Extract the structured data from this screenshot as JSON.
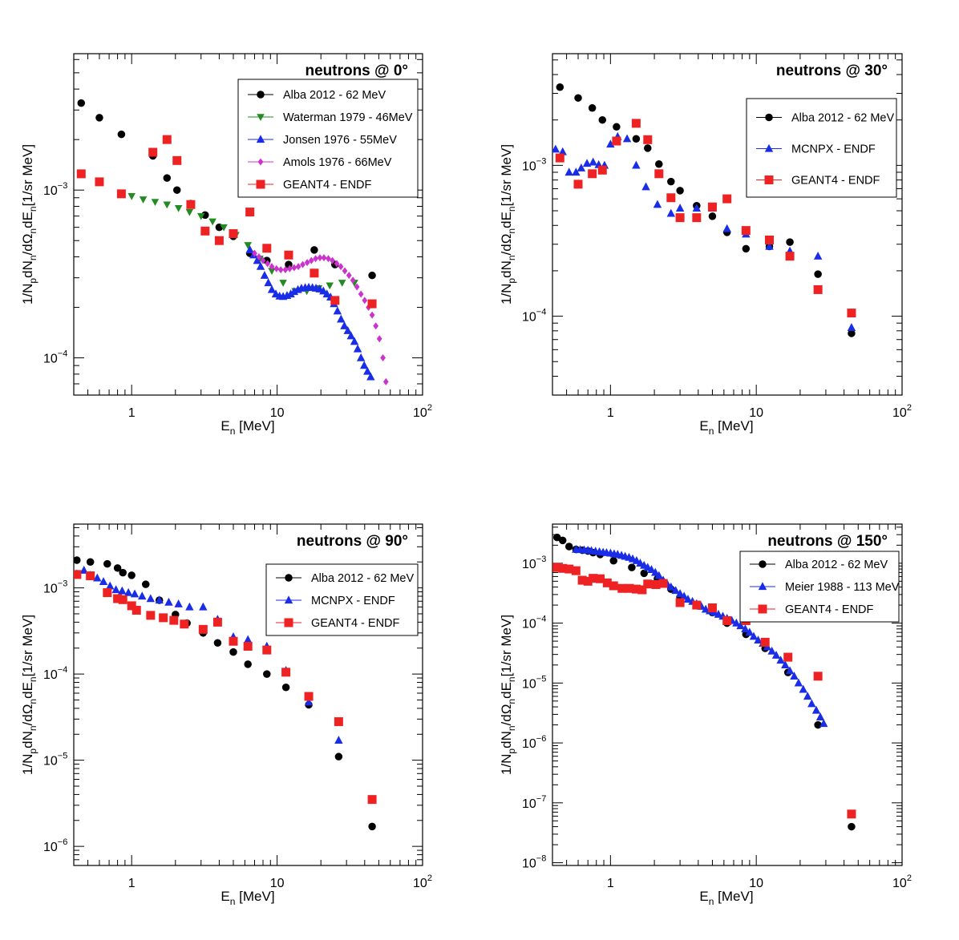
{
  "colors": {
    "black": "#000000",
    "green": "#228b22",
    "blue": "#1a2de6",
    "magenta": "#cc33cc",
    "red": "#ee2222"
  },
  "chart_data": [
    {
      "type": "scatter",
      "title": "neutrons @ 0°",
      "xlabel": "E_n [MeV]",
      "ylabel": "1/N_p dN_n/dΩ_n dE_n [1/sr MeV]",
      "xscale": "log",
      "yscale": "log",
      "xlim": [
        0.4,
        100
      ],
      "ylim": [
        6e-05,
        0.0065
      ],
      "xticklabels": [
        "1",
        "10",
        "10^2"
      ],
      "yticks": [
        {
          "v": 0.001,
          "m": "10",
          "e": "−3"
        },
        {
          "v": 0.0001,
          "m": "10",
          "e": "−4"
        }
      ],
      "legend": {
        "placement": "top-right"
      },
      "series": [
        {
          "name": "Alba 2012 - 62 MeV",
          "marker": "circle",
          "color": "#000000",
          "x": [
            0.45,
            0.6,
            0.85,
            1.4,
            1.75,
            2.05,
            2.55,
            3.2,
            4.0,
            5.0,
            6.5,
            8.5,
            12,
            18,
            25,
            45
          ],
          "y": [
            0.0033,
            0.0027,
            0.00215,
            0.0016,
            0.00118,
            0.001,
            0.00083,
            0.00071,
            0.0006,
            0.00053,
            0.00042,
            0.00038,
            0.00036,
            0.00044,
            0.00036,
            0.00031
          ]
        },
        {
          "name": "Waterman 1979 - 46MeV",
          "marker": "triangle-down",
          "color": "#228b22",
          "x": [
            1.0,
            1.2,
            1.45,
            1.75,
            2.1,
            2.5,
            3.0,
            3.6,
            4.3,
            5.2,
            6.3,
            7.6,
            9.2,
            11,
            13.3,
            16,
            19.3,
            23,
            28,
            34
          ],
          "y": [
            0.00092,
            0.00088,
            0.00085,
            0.00082,
            0.00078,
            0.00074,
            0.0007,
            0.00065,
            0.0006,
            0.00054,
            0.00047,
            0.00039,
            0.00033,
            0.00028,
            0.00025,
            0.00025,
            0.00026,
            0.00027,
            0.00028,
            0.00028
          ]
        },
        {
          "name": "Jonsen 1976 - 55MeV",
          "marker": "triangle-up",
          "color": "#1a2de6",
          "x": [
            6.5,
            6.9,
            7.3,
            7.7,
            8.2,
            8.7,
            9.2,
            9.8,
            10.4,
            11.0,
            11.7,
            12.4,
            13.1,
            13.9,
            14.7,
            15.6,
            16.5,
            17.5,
            18.5,
            19.6,
            20.8,
            22,
            23.3,
            24.6,
            26,
            27.5,
            29,
            30.6,
            32.2,
            34,
            35.8,
            37.7,
            39.7,
            41.8,
            44
          ],
          "y": [
            0.00044,
            0.00041,
            0.00038,
            0.00035,
            0.00031,
            0.00028,
            0.000255,
            0.00024,
            0.000233,
            0.000232,
            0.000235,
            0.00024,
            0.000248,
            0.000255,
            0.00026,
            0.000262,
            0.000263,
            0.000262,
            0.00026,
            0.000257,
            0.00025,
            0.00024,
            0.00023,
            0.00021,
            0.00019,
            0.00017,
            0.000155,
            0.000145,
            0.000135,
            0.000125,
            0.000113,
            0.0001,
            9e-05,
            8.3e-05,
            7.7e-05
          ]
        },
        {
          "name": "Amols 1976 - 66MeV",
          "marker": "diamond",
          "color": "#cc33cc",
          "x": [
            7,
            7.5,
            8,
            8.6,
            9.2,
            9.9,
            10.6,
            11.4,
            12.2,
            13.1,
            14.0,
            15.0,
            16.1,
            17.2,
            18.4,
            19.7,
            21,
            22.5,
            24,
            25.7,
            27.4,
            29.2,
            31.2,
            33.2,
            35.4,
            37.7,
            40,
            42.5,
            45,
            47.7,
            50.5,
            53.4,
            56
          ],
          "y": [
            0.00042,
            0.0004,
            0.00038,
            0.000365,
            0.00035,
            0.00034,
            0.000335,
            0.000335,
            0.00034,
            0.000345,
            0.00035,
            0.00036,
            0.00037,
            0.00038,
            0.00039,
            0.000395,
            0.000395,
            0.00039,
            0.00038,
            0.000365,
            0.00035,
            0.00033,
            0.00031,
            0.00029,
            0.000265,
            0.00024,
            0.00022,
            0.0002,
            0.00018,
            0.000155,
            0.00013,
            0.0001,
            7.2e-05
          ]
        },
        {
          "name": "GEANT4 - ENDF",
          "marker": "square",
          "color": "#ee2222",
          "x": [
            0.45,
            0.6,
            0.85,
            1.4,
            1.75,
            2.05,
            2.55,
            3.2,
            4.0,
            5.0,
            6.5,
            8.5,
            12,
            18,
            25,
            45
          ],
          "y": [
            0.00125,
            0.00112,
            0.00095,
            0.00168,
            0.002,
            0.0015,
            0.00082,
            0.00057,
            0.0005,
            0.00055,
            0.00074,
            0.00045,
            0.00041,
            0.00032,
            0.00022,
            0.00021
          ]
        }
      ]
    },
    {
      "type": "scatter",
      "title": "neutrons @ 30°",
      "xlabel": "E_n [MeV]",
      "ylabel": "1/N_p dN_n/dΩ_n dE_n [1/sr MeV]",
      "xscale": "log",
      "yscale": "log",
      "xlim": [
        0.4,
        100
      ],
      "ylim": [
        3e-05,
        0.0055
      ],
      "xticklabels": [
        "1",
        "10",
        "10^2"
      ],
      "yticks": [
        {
          "v": 0.001,
          "m": "10",
          "e": "−3"
        },
        {
          "v": 0.0001,
          "m": "10",
          "e": "−4"
        }
      ],
      "legend": {
        "placement": "top-right"
      },
      "series": [
        {
          "name": "Alba 2012 - 62 MeV",
          "marker": "circle",
          "color": "#000000",
          "x": [
            0.45,
            0.6,
            0.75,
            0.88,
            1.1,
            1.5,
            1.8,
            2.15,
            2.6,
            3.0,
            3.9,
            5.0,
            6.3,
            8.5,
            12.3,
            17,
            26.5,
            45
          ],
          "y": [
            0.0033,
            0.0028,
            0.0024,
            0.002,
            0.0018,
            0.0015,
            0.0013,
            0.00102,
            0.00078,
            0.00068,
            0.00054,
            0.00046,
            0.00036,
            0.00028,
            0.00029,
            0.00031,
            0.00019,
            7.7e-05
          ]
        },
        {
          "name": "MCNPX - ENDF",
          "marker": "triangle-up",
          "color": "#1a2de6",
          "x": [
            0.42,
            0.47,
            0.52,
            0.58,
            0.63,
            0.69,
            0.76,
            0.83,
            0.91,
            1.0,
            1.12,
            1.3,
            1.5,
            1.75,
            2.1,
            2.6,
            3.0,
            3.9,
            5.0,
            6.3,
            8.5,
            12.3,
            17,
            26.5,
            45
          ],
          "y": [
            0.00128,
            0.00123,
            0.0009,
            0.0009,
            0.00096,
            0.00103,
            0.00105,
            0.00101,
            0.001,
            0.00138,
            0.00155,
            0.0015,
            0.001,
            0.00072,
            0.00055,
            0.00048,
            0.00052,
            0.00052,
            0.00052,
            0.00038,
            0.00035,
            0.00029,
            0.00027,
            0.00025,
            8.4e-05
          ]
        },
        {
          "name": "GEANT4 - ENDF",
          "marker": "square",
          "color": "#ee2222",
          "x": [
            0.45,
            0.6,
            0.75,
            0.88,
            1.1,
            1.5,
            1.8,
            2.15,
            2.6,
            3.0,
            3.9,
            5.0,
            6.3,
            8.5,
            12.3,
            17,
            26.5,
            45
          ],
          "y": [
            0.00112,
            0.00075,
            0.00088,
            0.00093,
            0.00145,
            0.0019,
            0.00148,
            0.00088,
            0.00061,
            0.00045,
            0.00045,
            0.00053,
            0.0006,
            0.00037,
            0.00032,
            0.00025,
            0.00015,
            0.000105
          ]
        }
      ]
    },
    {
      "type": "scatter",
      "title": "neutrons @ 90°",
      "xlabel": "E_n [MeV]",
      "ylabel": "1/N_p dN_n/dΩ_n dE_n [1/sr MeV]",
      "xscale": "log",
      "yscale": "log",
      "xlim": [
        0.4,
        100
      ],
      "ylim": [
        6e-07,
        0.0055
      ],
      "xticklabels": [
        "1",
        "10",
        "10^2"
      ],
      "yticks": [
        {
          "v": 0.001,
          "m": "10",
          "e": "−3"
        },
        {
          "v": 0.0001,
          "m": "10",
          "e": "−4"
        },
        {
          "v": 1e-05,
          "m": "10",
          "e": "−5"
        },
        {
          "v": 1e-06,
          "m": "10",
          "e": "−6"
        }
      ],
      "legend": {
        "placement": "top-right"
      },
      "series": [
        {
          "name": "Alba 2012 - 62 MeV",
          "marker": "circle",
          "color": "#000000",
          "x": [
            0.42,
            0.52,
            0.68,
            0.8,
            0.87,
            1.0,
            1.25,
            1.55,
            2.0,
            2.4,
            3.1,
            3.9,
            5.0,
            6.3,
            8.5,
            11.5,
            16.5,
            26.5,
            45
          ],
          "y": [
            0.0021,
            0.002,
            0.0019,
            0.0017,
            0.0015,
            0.0014,
            0.0011,
            0.00072,
            0.00049,
            0.00039,
            0.0003,
            0.00023,
            0.00018,
            0.00013,
            0.0001,
            7e-05,
            4.4e-05,
            1.1e-05,
            1.7e-06
          ]
        },
        {
          "name": "MCNPX - ENDF",
          "marker": "triangle-up",
          "color": "#1a2de6",
          "x": [
            0.42,
            0.47,
            0.52,
            0.58,
            0.64,
            0.71,
            0.78,
            0.86,
            0.95,
            1.05,
            1.18,
            1.35,
            1.55,
            1.8,
            2.1,
            2.5,
            3.1,
            3.9,
            5.0,
            6.3,
            8.5,
            11.5,
            16.5,
            26.5
          ],
          "y": [
            0.00145,
            0.0016,
            0.0014,
            0.0013,
            0.00118,
            0.00105,
            0.00095,
            0.00092,
            0.00088,
            0.00085,
            0.0008,
            0.00075,
            0.00072,
            0.00068,
            0.00065,
            0.0006,
            0.0006,
            0.00043,
            0.00027,
            0.00025,
            0.00021,
            0.00011,
            4.7e-05,
            1.7e-05
          ]
        },
        {
          "name": "GEANT4 - ENDF",
          "marker": "square",
          "color": "#ee2222",
          "x": [
            0.42,
            0.52,
            0.68,
            0.8,
            0.87,
            1.0,
            1.08,
            1.35,
            1.65,
            1.95,
            2.3,
            3.1,
            3.9,
            5.0,
            6.3,
            8.5,
            11.5,
            16.5,
            26.5,
            45
          ],
          "y": [
            0.00143,
            0.00138,
            0.00088,
            0.00075,
            0.00073,
            0.00062,
            0.00055,
            0.00048,
            0.00045,
            0.00042,
            0.00038,
            0.00033,
            0.0004,
            0.00024,
            0.00021,
            0.00019,
            0.000105,
            5.5e-05,
            2.8e-05,
            3.5e-06
          ]
        }
      ]
    },
    {
      "type": "scatter",
      "title": "neutrons @ 150°",
      "xlabel": "E_n [MeV]",
      "ylabel": "1/N_p dN_n/dΩ_n dE_n [1/sr MeV]",
      "xscale": "log",
      "yscale": "log",
      "xlim": [
        0.4,
        100
      ],
      "ylim": [
        9e-09,
        0.0045
      ],
      "xticklabels": [
        "1",
        "10",
        "10^2"
      ],
      "yticks": [
        {
          "v": 0.001,
          "m": "10",
          "e": "−3"
        },
        {
          "v": 0.0001,
          "m": "10",
          "e": "−4"
        },
        {
          "v": 1e-05,
          "m": "10",
          "e": "−5"
        },
        {
          "v": 1e-06,
          "m": "10",
          "e": "−6"
        },
        {
          "v": 1e-07,
          "m": "10",
          "e": "−7"
        },
        {
          "v": 1e-08,
          "m": "10",
          "e": "−8"
        }
      ],
      "legend": {
        "placement": "top-right"
      },
      "series": [
        {
          "name": "Alba 2012 - 62 MeV",
          "marker": "circle",
          "color": "#000000",
          "x": [
            0.43,
            0.47,
            0.52,
            0.58,
            0.64,
            0.7,
            0.76,
            0.85,
            1.05,
            1.4,
            1.7,
            2.1,
            2.6,
            3.0,
            3.9,
            5.0,
            6.3,
            8.5,
            11.5,
            16.5,
            26.5,
            45
          ],
          "y": [
            0.0027,
            0.0024,
            0.0019,
            0.0017,
            0.00165,
            0.0016,
            0.0015,
            0.0014,
            0.0011,
            0.00085,
            0.00068,
            0.00055,
            0.00037,
            0.00027,
            0.0002,
            0.00015,
            0.0001,
            6.5e-05,
            3.8e-05,
            1.5e-05,
            2e-06,
            4e-08
          ]
        },
        {
          "name": "Meier 1988 - 113 MeV",
          "marker": "triangle-up",
          "color": "#1a2de6",
          "x": [
            0.58,
            0.62,
            0.66,
            0.7,
            0.74,
            0.79,
            0.84,
            0.89,
            0.94,
            1.0,
            1.06,
            1.12,
            1.19,
            1.26,
            1.34,
            1.42,
            1.51,
            1.6,
            1.7,
            1.8,
            1.91,
            2.03,
            2.15,
            2.3,
            2.45,
            2.6,
            2.8,
            3.0,
            3.2,
            3.4,
            3.65,
            3.9,
            4.2,
            4.5,
            4.8,
            5.15,
            5.5,
            5.9,
            6.3,
            6.8,
            7.3,
            7.8,
            8.4,
            9.0,
            9.6,
            10.3,
            11.1,
            11.9,
            12.8,
            13.7,
            14.7,
            15.8,
            17,
            18.2,
            19.5,
            21,
            22.5,
            24,
            25.8,
            27.5,
            29
          ],
          "y": [
            0.0017,
            0.00168,
            0.00166,
            0.00164,
            0.00162,
            0.00158,
            0.00155,
            0.00152,
            0.0015,
            0.00147,
            0.00143,
            0.0014,
            0.00135,
            0.0013,
            0.00125,
            0.00118,
            0.0011,
            0.001,
            0.00092,
            0.00085,
            0.00078,
            0.0007,
            0.00062,
            0.00052,
            0.00045,
            0.0004,
            0.00035,
            0.00031,
            0.00028,
            0.00025,
            0.00023,
            0.00021,
            0.00019,
            0.00017,
            0.00016,
            0.00015,
            0.00014,
            0.00013,
            0.00012,
            0.00011,
            0.0001,
            9e-05,
            8e-05,
            7e-05,
            6e-05,
            5.2e-05,
            4.6e-05,
            4e-05,
            3.4e-05,
            2.9e-05,
            2.4e-05,
            2e-05,
            1.6e-05,
            1.3e-05,
            1e-05,
            7.8e-06,
            6e-06,
            4.5e-06,
            3.5e-06,
            2.7e-06,
            2.1e-06
          ]
        },
        {
          "name": "GEANT4 - ENDF",
          "marker": "square",
          "color": "#ee2222",
          "x": [
            0.43,
            0.47,
            0.52,
            0.58,
            0.64,
            0.7,
            0.76,
            0.85,
            0.95,
            1.05,
            1.2,
            1.35,
            1.5,
            1.65,
            1.8,
            2.05,
            2.3,
            3.0,
            3.9,
            5.0,
            6.3,
            8.5,
            11.5,
            16.5,
            26.5,
            45
          ],
          "y": [
            0.00085,
            0.00082,
            0.0008,
            0.00075,
            0.00052,
            0.0005,
            0.00056,
            0.00055,
            0.00047,
            0.00042,
            0.00038,
            0.00038,
            0.00037,
            0.00036,
            0.00045,
            0.00044,
            0.00046,
            0.00022,
            0.0002,
            0.00018,
            0.00011,
            0.00011,
            4.8e-05,
            2.7e-05,
            1.3e-05,
            6.5e-08
          ]
        }
      ]
    }
  ]
}
